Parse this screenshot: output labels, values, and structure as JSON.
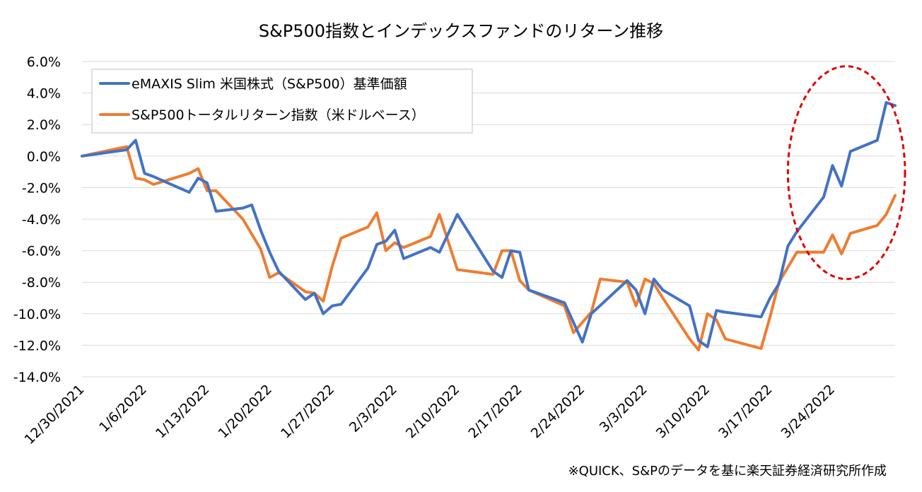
{
  "chart_data": {
    "type": "line",
    "title": "S&P500指数とインデックスファンドのリターン推移",
    "source_note": "※QUICK、S&Pのデータを基に楽天証券経済研究所作成",
    "y_ticks": [
      "6.0%",
      "4.0%",
      "2.0%",
      "0.0%",
      "-2.0%",
      "-4.0%",
      "-6.0%",
      "-8.0%",
      "-10.0%",
      "-12.0%",
      "-14.0%"
    ],
    "ylim": [
      -14,
      6
    ],
    "x_ticks": [
      {
        "label": "12/30/2021",
        "day": 0
      },
      {
        "label": "1/6/2022",
        "day": 7
      },
      {
        "label": "1/13/2022",
        "day": 14
      },
      {
        "label": "1/20/2022",
        "day": 21
      },
      {
        "label": "1/27/2022",
        "day": 28
      },
      {
        "label": "2/3/2022",
        "day": 35
      },
      {
        "label": "2/10/2022",
        "day": 42
      },
      {
        "label": "2/17/2022",
        "day": 49
      },
      {
        "label": "2/24/2022",
        "day": 56
      },
      {
        "label": "3/3/2022",
        "day": 63
      },
      {
        "label": "3/10/2022",
        "day": 70
      },
      {
        "label": "3/17/2022",
        "day": 77
      },
      {
        "label": "3/24/2022",
        "day": 84
      }
    ],
    "xlim": [
      0,
      91
    ],
    "grid": true,
    "legend_position": "top-left",
    "highlight": {
      "shape": "ellipse",
      "color": "#e00000",
      "style": "dashed",
      "x_range": [
        79,
        91
      ],
      "y_range": [
        -7.8,
        5.7
      ]
    },
    "series": [
      {
        "name": "eMAXIS Slim 米国株式（S&P500）基準価額",
        "color": "#4472c4",
        "points": [
          [
            0,
            0.0
          ],
          [
            5,
            0.4
          ],
          [
            6,
            1.0
          ],
          [
            7,
            -1.1
          ],
          [
            8,
            -1.3
          ],
          [
            12,
            -2.3
          ],
          [
            13,
            -1.4
          ],
          [
            14,
            -1.7
          ],
          [
            15,
            -3.5
          ],
          [
            18,
            -3.3
          ],
          [
            19,
            -3.1
          ],
          [
            20,
            -4.7
          ],
          [
            21,
            -6.1
          ],
          [
            22,
            -7.3
          ],
          [
            25,
            -9.1
          ],
          [
            26,
            -8.7
          ],
          [
            27,
            -10.0
          ],
          [
            28,
            -9.5
          ],
          [
            29,
            -9.4
          ],
          [
            32,
            -7.1
          ],
          [
            33,
            -5.6
          ],
          [
            34,
            -5.4
          ],
          [
            35,
            -4.7
          ],
          [
            36,
            -6.5
          ],
          [
            39,
            -5.8
          ],
          [
            40,
            -6.1
          ],
          [
            42,
            -3.7
          ],
          [
            46,
            -7.3
          ],
          [
            47,
            -7.7
          ],
          [
            48,
            -6.0
          ],
          [
            49,
            -6.1
          ],
          [
            50,
            -8.5
          ],
          [
            54,
            -9.3
          ],
          [
            56,
            -11.8
          ],
          [
            57,
            -10.0
          ],
          [
            61,
            -7.9
          ],
          [
            62,
            -8.5
          ],
          [
            63,
            -10.0
          ],
          [
            64,
            -7.8
          ],
          [
            65,
            -8.5
          ],
          [
            68,
            -9.5
          ],
          [
            69,
            -11.7
          ],
          [
            70,
            -12.1
          ],
          [
            71,
            -9.8
          ],
          [
            72,
            -9.9
          ],
          [
            76,
            -10.2
          ],
          [
            77,
            -9.0
          ],
          [
            78,
            -8.1
          ],
          [
            79,
            -5.7
          ],
          [
            80,
            -4.8
          ],
          [
            83,
            -2.6
          ],
          [
            84,
            -0.6
          ],
          [
            85,
            -1.9
          ],
          [
            86,
            0.3
          ],
          [
            89,
            1.0
          ],
          [
            90,
            3.4
          ],
          [
            91,
            3.2
          ]
        ]
      },
      {
        "name": "S&P500トータルリターン指数（米ドルベース）",
        "color": "#ed7d31",
        "points": [
          [
            0,
            0.0
          ],
          [
            5,
            0.6
          ],
          [
            6,
            -1.4
          ],
          [
            7,
            -1.5
          ],
          [
            8,
            -1.8
          ],
          [
            12,
            -1.1
          ],
          [
            13,
            -0.8
          ],
          [
            14,
            -2.2
          ],
          [
            15,
            -2.2
          ],
          [
            18,
            -4.0
          ],
          [
            20,
            -5.9
          ],
          [
            21,
            -7.7
          ],
          [
            22,
            -7.4
          ],
          [
            25,
            -8.6
          ],
          [
            26,
            -8.7
          ],
          [
            27,
            -9.2
          ],
          [
            28,
            -7.0
          ],
          [
            29,
            -5.2
          ],
          [
            32,
            -4.5
          ],
          [
            33,
            -3.6
          ],
          [
            34,
            -6.0
          ],
          [
            35,
            -5.5
          ],
          [
            36,
            -5.8
          ],
          [
            39,
            -5.1
          ],
          [
            40,
            -3.7
          ],
          [
            42,
            -7.2
          ],
          [
            46,
            -7.5
          ],
          [
            47,
            -6.0
          ],
          [
            48,
            -6.0
          ],
          [
            49,
            -7.9
          ],
          [
            50,
            -8.5
          ],
          [
            54,
            -9.5
          ],
          [
            55,
            -11.2
          ],
          [
            57,
            -9.9
          ],
          [
            58,
            -7.8
          ],
          [
            61,
            -8.0
          ],
          [
            62,
            -9.5
          ],
          [
            63,
            -7.8
          ],
          [
            64,
            -8.1
          ],
          [
            65,
            -9.0
          ],
          [
            68,
            -11.6
          ],
          [
            69,
            -12.3
          ],
          [
            70,
            -10.0
          ],
          [
            71,
            -10.4
          ],
          [
            72,
            -11.6
          ],
          [
            76,
            -12.2
          ],
          [
            77,
            -10.2
          ],
          [
            78,
            -8.0
          ],
          [
            80,
            -6.1
          ],
          [
            83,
            -6.1
          ],
          [
            84,
            -5.0
          ],
          [
            85,
            -6.2
          ],
          [
            86,
            -4.9
          ],
          [
            89,
            -4.4
          ],
          [
            90,
            -3.7
          ],
          [
            91,
            -2.5
          ]
        ]
      }
    ]
  }
}
